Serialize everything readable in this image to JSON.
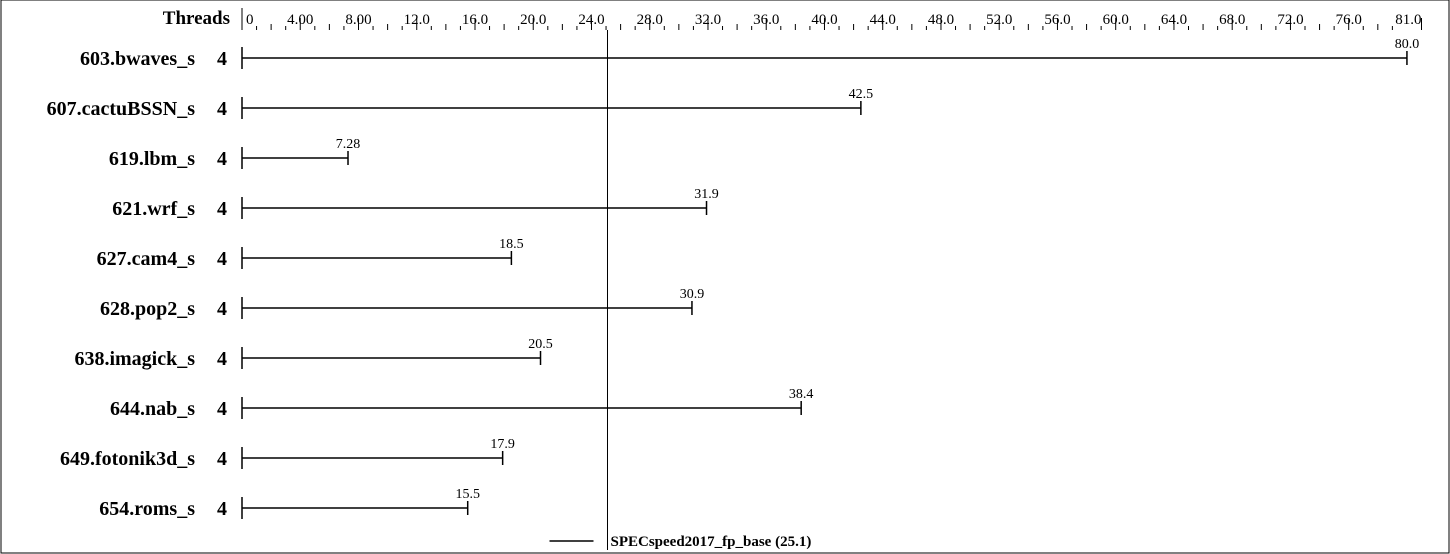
{
  "chart_data": {
    "type": "bar",
    "header": {
      "threads_label": "Threads"
    },
    "x_ticks": [
      "0",
      "4.00",
      "8.00",
      "12.0",
      "16.0",
      "20.0",
      "24.0",
      "28.0",
      "32.0",
      "36.0",
      "40.0",
      "44.0",
      "48.0",
      "52.0",
      "56.0",
      "60.0",
      "64.0",
      "68.0",
      "72.0",
      "76.0",
      "81.0"
    ],
    "xlim": [
      0,
      81
    ],
    "reference": {
      "label": "SPECspeed2017_fp_base (25.1)",
      "value": 25.1
    },
    "rows": [
      {
        "name": "603.bwaves_s",
        "threads": "4",
        "value": 80.0,
        "label": "80.0"
      },
      {
        "name": "607.cactuBSSN_s",
        "threads": "4",
        "value": 42.5,
        "label": "42.5"
      },
      {
        "name": "619.lbm_s",
        "threads": "4",
        "value": 7.28,
        "label": "7.28"
      },
      {
        "name": "621.wrf_s",
        "threads": "4",
        "value": 31.9,
        "label": "31.9"
      },
      {
        "name": "627.cam4_s",
        "threads": "4",
        "value": 18.5,
        "label": "18.5"
      },
      {
        "name": "628.pop2_s",
        "threads": "4",
        "value": 30.9,
        "label": "30.9"
      },
      {
        "name": "638.imagick_s",
        "threads": "4",
        "value": 20.5,
        "label": "20.5"
      },
      {
        "name": "644.nab_s",
        "threads": "4",
        "value": 38.4,
        "label": "38.4"
      },
      {
        "name": "649.fotonik3d_s",
        "threads": "4",
        "value": 17.9,
        "label": "17.9"
      },
      {
        "name": "654.roms_s",
        "threads": "4",
        "value": 15.5,
        "label": "15.5"
      }
    ]
  }
}
